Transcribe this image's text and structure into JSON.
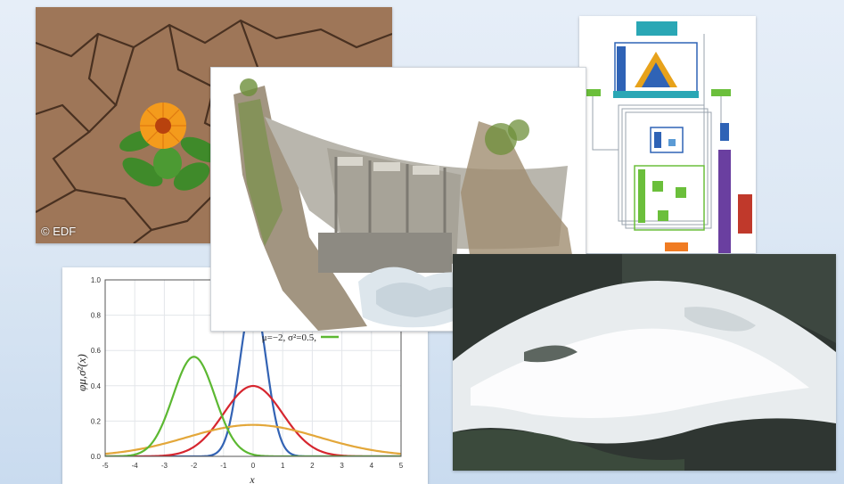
{
  "plant_photo": {
    "credit": "© EDF",
    "colors": {
      "soil": "#a47c5e",
      "flower": "#f49b1c",
      "leaf": "#3f8a2a"
    }
  },
  "diagram": {
    "icon": "model-architecture-icon",
    "colors": {
      "teal": "#2aa7b5",
      "blue": "#2f63b6",
      "green": "#6bbf3b",
      "purple": "#6a3fa0",
      "red": "#c0392b",
      "orange": "#f07b22"
    }
  },
  "chart_data": {
    "type": "line",
    "title": "",
    "xlabel": "x",
    "ylabel": "φμ,σ²(x)",
    "xlim": [
      -5,
      5
    ],
    "ylim": [
      0,
      1.0
    ],
    "xticks": [
      "-5",
      "-4",
      "-3",
      "-2",
      "-1",
      "0",
      "1",
      "2",
      "3",
      "4",
      "5"
    ],
    "yticks": [
      "0.0",
      "0.2",
      "0.4",
      "0.6",
      "0.8",
      "1.0"
    ],
    "grid": true,
    "legend_position": "top-right",
    "series": [
      {
        "name": "",
        "mu": 0,
        "sigma2": 0.2,
        "color": "#3363b4"
      },
      {
        "name": "",
        "mu": 0,
        "sigma2": 1.0,
        "color": "#d6262f"
      },
      {
        "name": "",
        "mu": 0,
        "sigma2": 5.0,
        "color": "#e3a73a"
      },
      {
        "name": "μ=−2,  σ²=0.5,",
        "mu": -2,
        "sigma2": 0.5,
        "color": "#5cb832"
      }
    ]
  },
  "dam_illustration": {
    "icon": "dam-watercolor-icon",
    "colors": {
      "concrete": "#b9b6ad",
      "rock": "#8b7a62",
      "vegetation": "#6d8f3a"
    }
  },
  "water_photo": {
    "icon": "dam-spillway-water-icon",
    "colors": {
      "water": "#e8ecee",
      "dark": "#2f3632"
    }
  }
}
